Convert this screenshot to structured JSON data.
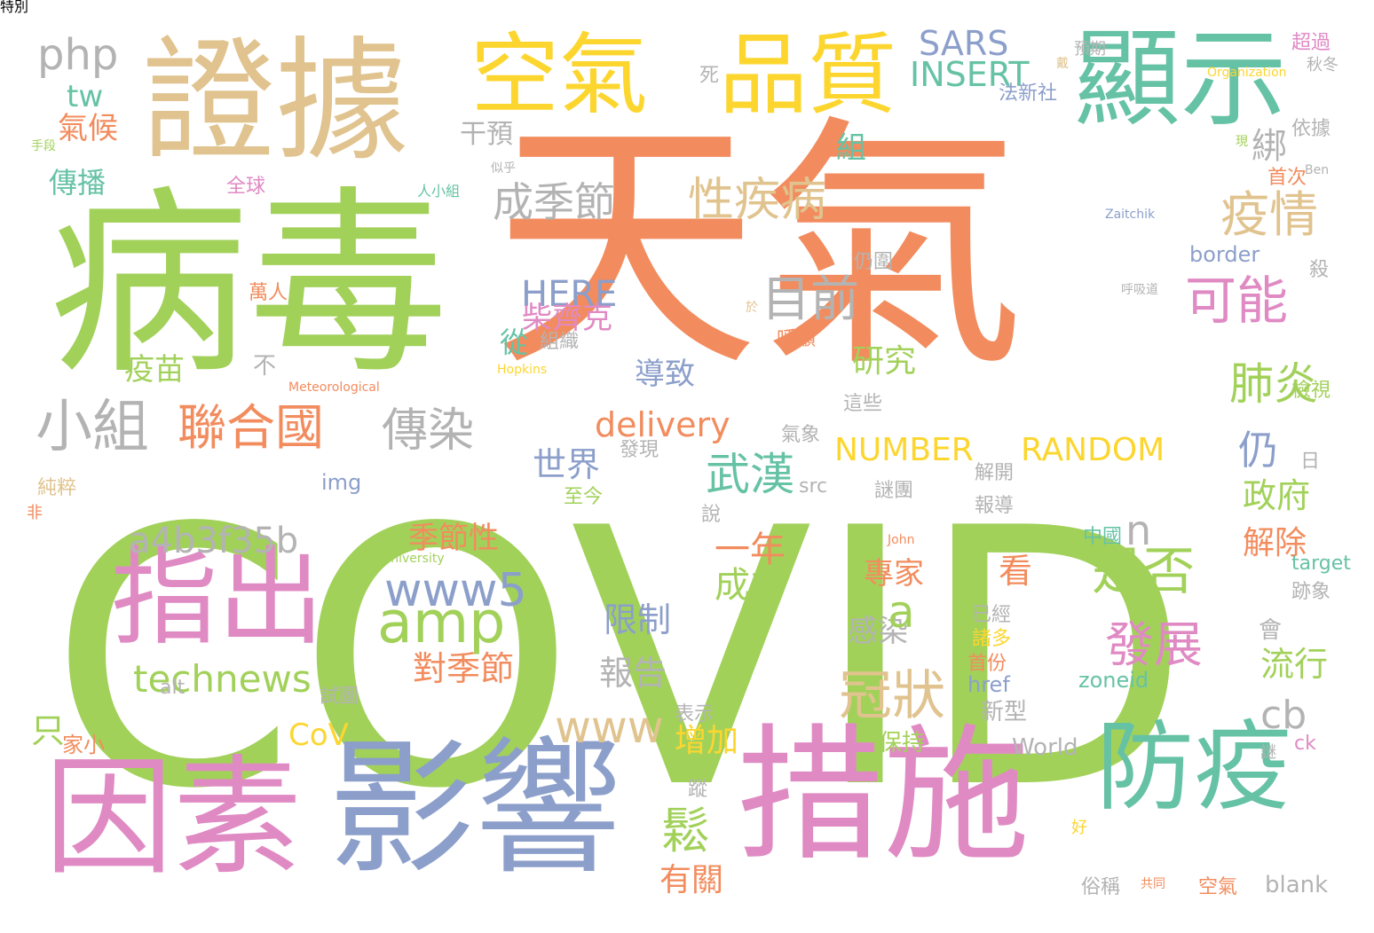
{
  "palette": {
    "orange": "#f28c5e",
    "green": "#a2d15a",
    "tan": "#e0c38e",
    "yellow": "#fcd62f",
    "teal": "#66c2a5",
    "pink": "#e08ac4",
    "blue": "#8c9fcb",
    "grey": "#b3b3b3"
  },
  "words": [
    {
      "text": "COVID",
      "color": "green"
    },
    {
      "text": "天氣",
      "color": "orange"
    },
    {
      "text": "病毒",
      "color": "green"
    },
    {
      "text": "證據",
      "color": "tan"
    },
    {
      "text": "影響",
      "color": "blue"
    },
    {
      "text": "措施",
      "color": "pink"
    },
    {
      "text": "因素",
      "color": "pink"
    },
    {
      "text": "顯示",
      "color": "teal"
    },
    {
      "text": "空氣",
      "color": "yellow"
    },
    {
      "text": "品質",
      "color": "yellow"
    },
    {
      "text": "防疫",
      "color": "teal"
    },
    {
      "text": "指出",
      "color": "pink"
    },
    {
      "text": "php",
      "color": "grey"
    },
    {
      "text": "SARS",
      "color": "blue"
    },
    {
      "text": "INSERT",
      "color": "teal"
    },
    {
      "text": "tw",
      "color": "teal"
    },
    {
      "text": "氣候",
      "color": "orange"
    },
    {
      "text": "傳播",
      "color": "teal"
    },
    {
      "text": "干預",
      "color": "grey"
    },
    {
      "text": "綁",
      "color": "grey"
    },
    {
      "text": "組",
      "color": "teal"
    },
    {
      "text": "成季節",
      "color": "grey"
    },
    {
      "text": "性疾病",
      "color": "tan"
    },
    {
      "text": "疫情",
      "color": "tan"
    },
    {
      "text": "目前",
      "color": "grey"
    },
    {
      "text": "可能",
      "color": "pink"
    },
    {
      "text": "小組",
      "color": "grey"
    },
    {
      "text": "聯合國",
      "color": "orange"
    },
    {
      "text": "傳染",
      "color": "grey"
    },
    {
      "text": "HERE",
      "color": "blue"
    },
    {
      "text": "柴齊克",
      "color": "pink"
    },
    {
      "text": "從",
      "color": "teal"
    },
    {
      "text": "肺炎",
      "color": "green"
    },
    {
      "text": "delivery",
      "color": "orange"
    },
    {
      "text": "仍",
      "color": "blue"
    },
    {
      "text": "武漢",
      "color": "teal"
    },
    {
      "text": "NUMBER",
      "color": "yellow"
    },
    {
      "text": "RANDOM",
      "color": "yellow"
    },
    {
      "text": "世界",
      "color": "blue"
    },
    {
      "text": "a4b3f35b",
      "color": "grey"
    },
    {
      "text": "www5",
      "color": "blue"
    },
    {
      "text": "amp",
      "color": "green"
    },
    {
      "text": "technews",
      "color": "green"
    },
    {
      "text": "季節性",
      "color": "orange"
    },
    {
      "text": "一年",
      "color": "orange"
    },
    {
      "text": "成為",
      "color": "green"
    },
    {
      "text": "是否",
      "color": "green"
    },
    {
      "text": "發展",
      "color": "pink"
    },
    {
      "text": "冠狀",
      "color": "tan"
    },
    {
      "text": "政府",
      "color": "green"
    },
    {
      "text": "解除",
      "color": "orange"
    },
    {
      "text": "流行",
      "color": "green"
    },
    {
      "text": "cb",
      "color": "grey"
    },
    {
      "text": "限制",
      "color": "blue"
    },
    {
      "text": "對季節",
      "color": "orange"
    },
    {
      "text": "報告",
      "color": "grey"
    },
    {
      "text": "CoV",
      "color": "yellow"
    },
    {
      "text": "www",
      "color": "tan"
    },
    {
      "text": "增加",
      "color": "yellow"
    },
    {
      "text": "鬆",
      "color": "green"
    },
    {
      "text": "有關",
      "color": "orange"
    },
    {
      "text": "疫苗",
      "color": "green"
    },
    {
      "text": "不",
      "color": "grey"
    },
    {
      "text": "研究",
      "color": "green"
    },
    {
      "text": "導致",
      "color": "blue"
    },
    {
      "text": "專家",
      "color": "orange"
    },
    {
      "text": "感染",
      "color": "grey"
    },
    {
      "text": "看",
      "color": "orange"
    },
    {
      "text": "只",
      "color": "green"
    },
    {
      "text": "家小",
      "color": "orange"
    },
    {
      "text": "n",
      "color": "grey"
    },
    {
      "text": "a",
      "color": "green"
    },
    {
      "text": "會",
      "color": "grey"
    },
    {
      "text": "保持",
      "color": "green"
    },
    {
      "text": "新型",
      "color": "grey"
    },
    {
      "text": "World",
      "color": "grey"
    },
    {
      "text": "zoneid",
      "color": "teal"
    },
    {
      "text": "blank",
      "color": "grey"
    },
    {
      "text": "href",
      "color": "blue"
    },
    {
      "text": "target",
      "color": "teal"
    },
    {
      "text": "border",
      "color": "blue"
    },
    {
      "text": "img",
      "color": "blue"
    },
    {
      "text": "src",
      "color": "grey"
    },
    {
      "text": "alt",
      "color": "grey"
    },
    {
      "text": "ck",
      "color": "pink"
    },
    {
      "text": "法新社",
      "color": "blue"
    },
    {
      "text": "全球",
      "color": "pink"
    },
    {
      "text": "萬人",
      "color": "orange"
    },
    {
      "text": "呼籲",
      "color": "orange"
    },
    {
      "text": "依據",
      "color": "grey"
    },
    {
      "text": "首次",
      "color": "orange"
    },
    {
      "text": "殺",
      "color": "grey"
    },
    {
      "text": "檢視",
      "color": "green"
    },
    {
      "text": "日",
      "color": "grey"
    },
    {
      "text": "解開",
      "color": "grey"
    },
    {
      "text": "報導",
      "color": "grey"
    },
    {
      "text": "這場",
      "color": "green"
    },
    {
      "text": "謎團",
      "color": "grey"
    },
    {
      "text": "已經",
      "color": "grey"
    },
    {
      "text": "首份",
      "color": "orange"
    },
    {
      "text": "諸多",
      "color": "yellow"
    },
    {
      "text": "俗稱",
      "color": "grey"
    },
    {
      "text": "空氣",
      "color": "orange"
    },
    {
      "text": "說",
      "color": "grey"
    },
    {
      "text": "發現",
      "color": "grey"
    },
    {
      "text": "氣象",
      "color": "grey"
    },
    {
      "text": "至今",
      "color": "green"
    },
    {
      "text": "純粹",
      "color": "tan"
    },
    {
      "text": "試圖",
      "color": "grey"
    },
    {
      "text": "表示",
      "color": "grey"
    },
    {
      "text": "仍圍",
      "color": "grey"
    },
    {
      "text": "超過",
      "color": "pink"
    },
    {
      "text": "死",
      "color": "grey"
    },
    {
      "text": "組織",
      "color": "grey"
    },
    {
      "text": "這些",
      "color": "grey"
    },
    {
      "text": "跡象",
      "color": "grey"
    },
    {
      "text": "中國",
      "color": "teal"
    },
    {
      "text": "人小組",
      "color": "teal"
    },
    {
      "text": "Meteorological",
      "color": "orange"
    },
    {
      "text": "Organization",
      "color": "yellow"
    },
    {
      "text": "John",
      "color": "orange"
    },
    {
      "text": "Hopkins",
      "color": "yellow"
    },
    {
      "text": "University",
      "color": "green"
    },
    {
      "text": "Zaitchik",
      "color": "blue"
    },
    {
      "text": "Ben",
      "color": "grey"
    },
    {
      "text": "蹤",
      "color": "grey"
    },
    {
      "text": "秋冬",
      "color": "grey"
    },
    {
      "text": "手段",
      "color": "green"
    },
    {
      "text": "非",
      "color": "orange"
    },
    {
      "text": "預期",
      "color": "grey"
    },
    {
      "text": "戴",
      "color": "tan"
    },
    {
      "text": "現",
      "color": "green"
    },
    {
      "text": "似乎",
      "color": "grey"
    },
    {
      "text": "於",
      "color": "tan"
    },
    {
      "text": "謎",
      "color": "grey"
    },
    {
      "text": "好",
      "color": "yellow"
    },
    {
      "text": "共同",
      "color": "orange"
    },
    {
      "text": "呼吸道",
      "color": "grey"
    },
    {
      "text": "特別",
      "color": "grey"
    }
  ]
}
